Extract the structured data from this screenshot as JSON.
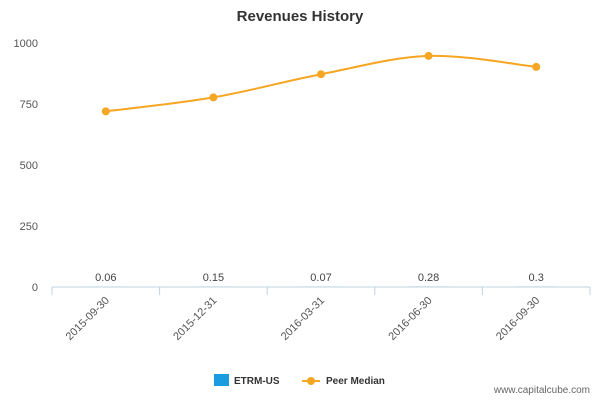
{
  "chart_data": {
    "type": "line",
    "title": "Revenues History",
    "x": [
      "2015-09-30",
      "2015-12-31",
      "2016-03-31",
      "2016-06-30",
      "2016-09-30"
    ],
    "ylim": [
      0,
      1000
    ],
    "yticks": [
      "0",
      "250",
      "500",
      "750",
      "1000"
    ],
    "bar_labels": [
      "0.06",
      "0.15",
      "0.07",
      "0.28",
      "0.3"
    ],
    "series": [
      {
        "name": "ETRM-US",
        "type": "bar",
        "color": "#1a9de0",
        "values": [
          0.06,
          0.15,
          0.07,
          0.28,
          0.3
        ]
      },
      {
        "name": "Peer Median",
        "type": "line",
        "color": "#f5a623",
        "values": [
          720,
          777,
          872,
          947,
          902
        ]
      }
    ],
    "grid": false,
    "legend_position": "bottom-center"
  },
  "watermark": "www.capitalcube.com"
}
